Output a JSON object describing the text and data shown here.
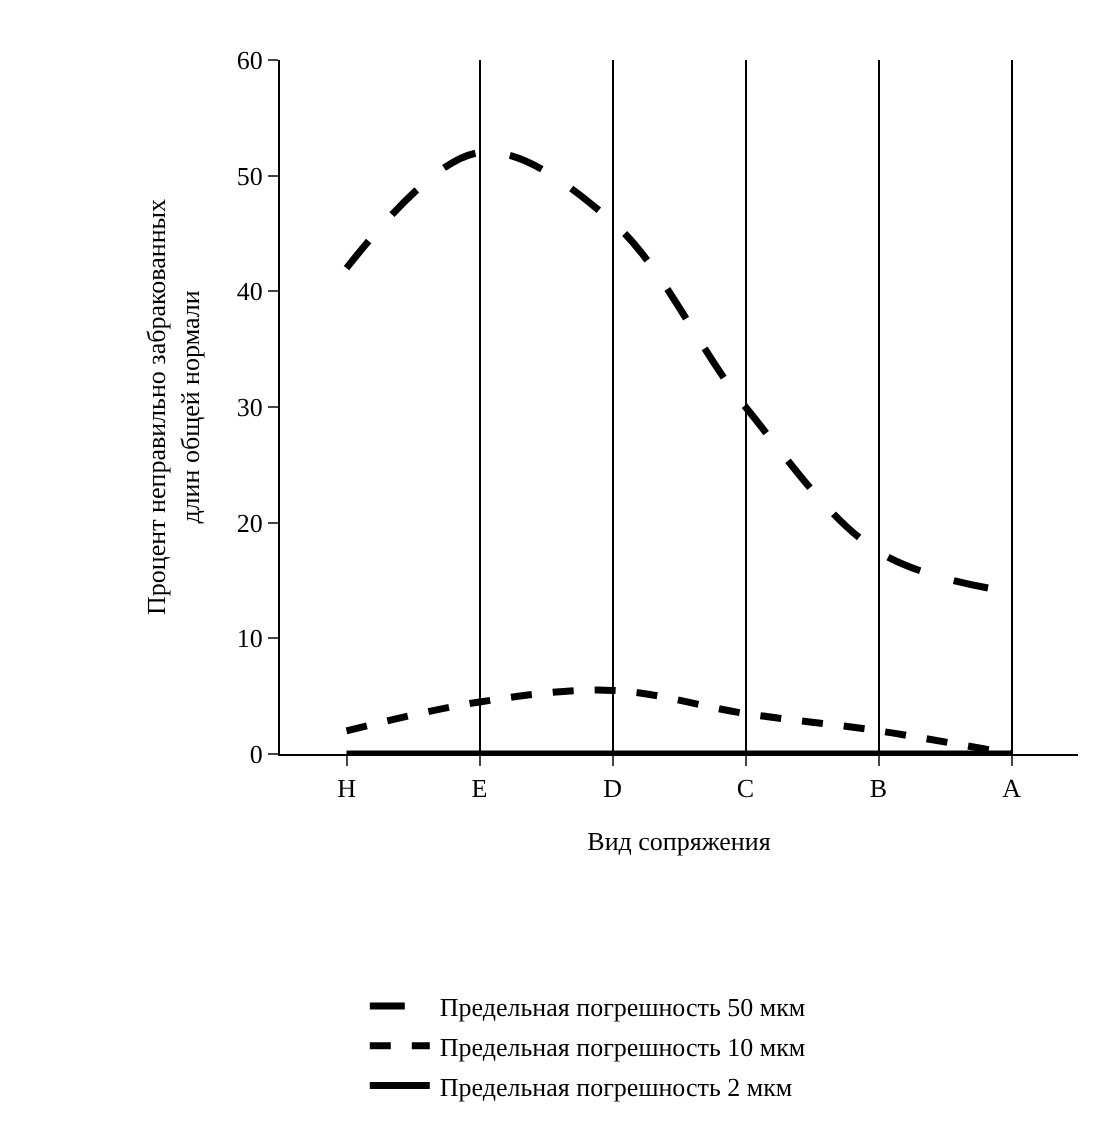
{
  "chart_data": {
    "type": "line",
    "xlabel": "Вид сопряжения",
    "ylabel": "Процент неправильно забракованных\nдлин общей нормали",
    "categories": [
      "H",
      "E",
      "D",
      "C",
      "B",
      "A"
    ],
    "series": [
      {
        "name": "Предельная погрешность 50 мкм",
        "color": "#000000",
        "line_style": "dashed",
        "values": [
          42,
          52,
          46,
          30,
          17.5,
          14
        ]
      },
      {
        "name": "Предельная погрешность 10 мкм",
        "color": "#000000",
        "line_style": "dotted",
        "values": [
          2,
          4.5,
          5.5,
          3.5,
          2,
          0
        ]
      },
      {
        "name": "Предельная погрешность 2 мкм",
        "color": "#000000",
        "line_style": "solid",
        "values": [
          0,
          0,
          0,
          0,
          0,
          0
        ]
      }
    ],
    "ylim": [
      0,
      60
    ],
    "yticks": [
      0,
      10,
      20,
      30,
      40,
      50,
      60
    ],
    "grid": "x",
    "legend": "bottom",
    "marker": "none"
  }
}
